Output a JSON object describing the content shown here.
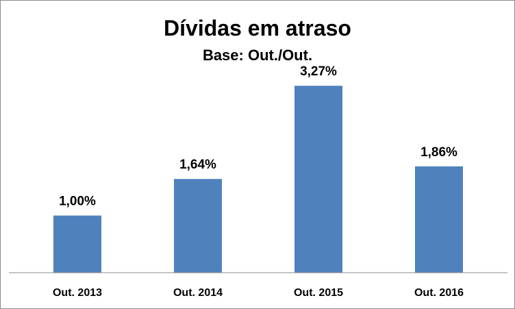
{
  "chart_data": {
    "type": "bar",
    "title": "Dívidas em atraso",
    "subtitle": "Base: Out./Out.",
    "categories": [
      "Out. 2013",
      "Out. 2014",
      "Out. 2015",
      "Out. 2016"
    ],
    "values": [
      1.0,
      1.64,
      3.27,
      1.86
    ],
    "value_labels": [
      "1,00%",
      "1,64%",
      "3,27%",
      "1,86%"
    ],
    "xlabel": "",
    "ylabel": "",
    "ylim": [
      0,
      3.5
    ],
    "grid": false,
    "legend": "none",
    "bar_color": "#4f81bd"
  }
}
